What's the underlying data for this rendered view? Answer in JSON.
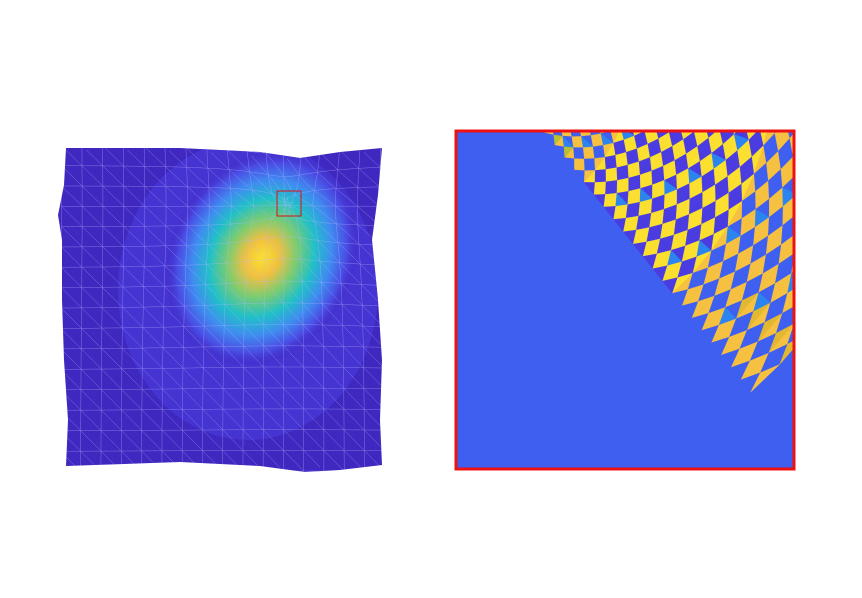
{
  "figure": {
    "left_panel": {
      "description_tag": "deformed-triangular-mesh-with-colormap",
      "colormap": [
        "#3f28c0",
        "#4a3ce0",
        "#3f6cf0",
        "#2aa0f0",
        "#20c0c8",
        "#7ccc70",
        "#f0c040",
        "#fce030"
      ],
      "mesh_line_color": "#b8b8ff",
      "zoom_box_color": "#e01010"
    },
    "right_panel": {
      "frame_color": "#ee1111",
      "palette": [
        "#3f5ff0",
        "#4a3ce0",
        "#2b84f0",
        "#f6c040",
        "#fbe030",
        "#e2b830",
        "#b8c030"
      ]
    }
  }
}
